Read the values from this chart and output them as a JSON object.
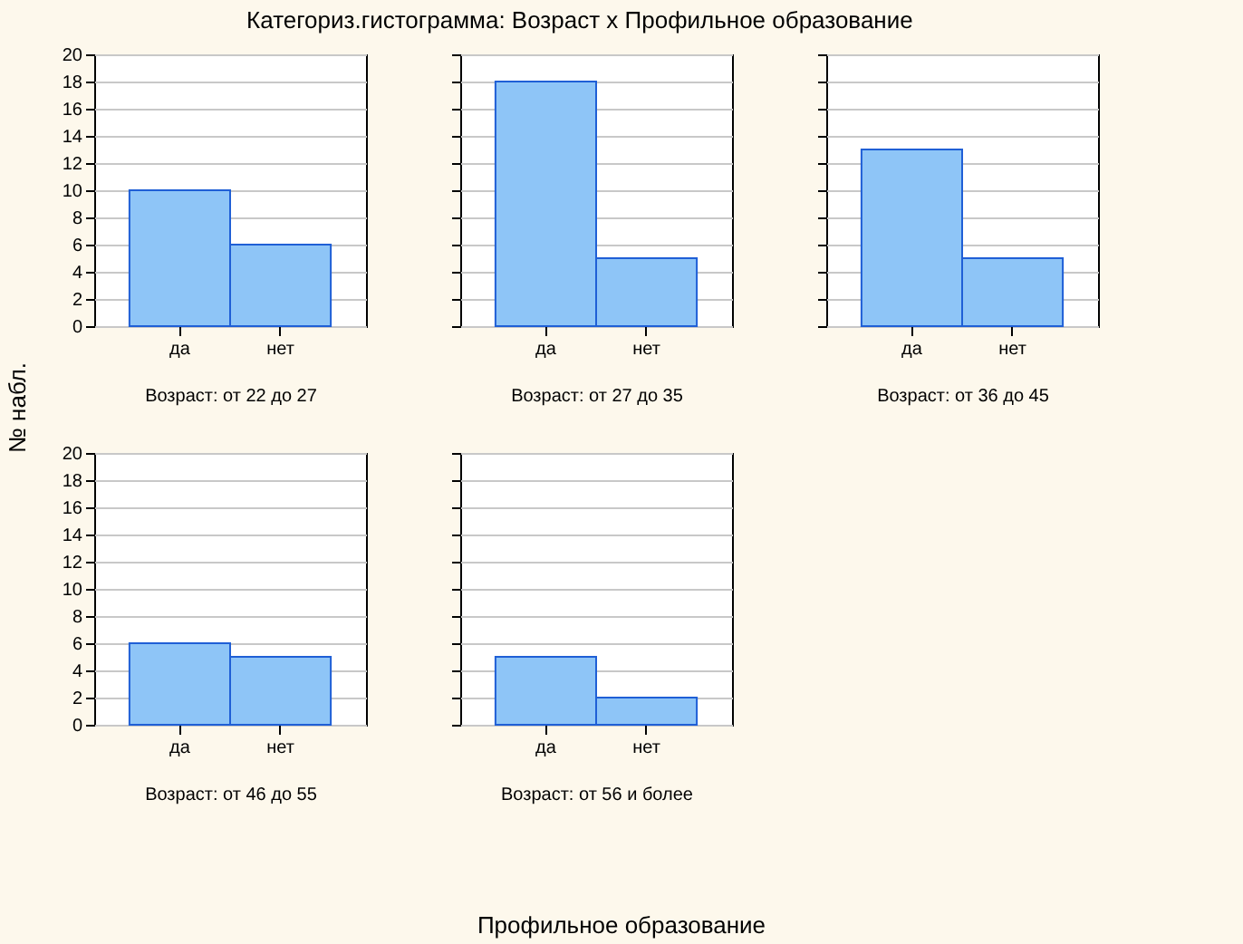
{
  "chart_data": [
    {
      "type": "bar",
      "title": "Категориз.гистограмма: Возраст x Профильное образование",
      "ylabel": "№ набл.",
      "annotations": [
        "Профильное образование"
      ],
      "xlabel": "Возраст: от 22 до 27",
      "categories": [
        "да",
        "нет"
      ],
      "values": [
        10,
        6
      ],
      "color": "#8ec5f7",
      "ylim": [
        0,
        20
      ],
      "yticks": [
        0,
        2,
        4,
        6,
        8,
        10,
        12,
        14,
        16,
        18,
        20
      ],
      "grid": "y"
    },
    {
      "type": "bar",
      "xlabel": "Возраст: от 27 до 35",
      "categories": [
        "да",
        "нет"
      ],
      "values": [
        18,
        5
      ],
      "color": "#8ec5f7",
      "ylim": [
        0,
        20
      ],
      "yticks": [
        0,
        2,
        4,
        6,
        8,
        10,
        12,
        14,
        16,
        18,
        20
      ],
      "grid": "y",
      "tick_labels": "x"
    },
    {
      "type": "bar",
      "xlabel": "Возраст: от 36 до 45",
      "categories": [
        "да",
        "нет"
      ],
      "values": [
        13,
        5
      ],
      "color": "#8ec5f7",
      "ylim": [
        0,
        20
      ],
      "yticks": [
        0,
        2,
        4,
        6,
        8,
        10,
        12,
        14,
        16,
        18,
        20
      ],
      "grid": "y",
      "tick_labels": "x"
    },
    {
      "type": "bar",
      "xlabel": "Возраст: от 46 до 55",
      "categories": [
        "да",
        "нет"
      ],
      "values": [
        6,
        5
      ],
      "color": "#8ec5f7",
      "ylim": [
        0,
        20
      ],
      "yticks": [
        0,
        2,
        4,
        6,
        8,
        10,
        12,
        14,
        16,
        18,
        20
      ],
      "grid": "y"
    },
    {
      "type": "bar",
      "xlabel": "Возраст: от 56 и более",
      "categories": [
        "да",
        "нет"
      ],
      "values": [
        5,
        2
      ],
      "color": "#8ec5f7",
      "ylim": [
        0,
        20
      ],
      "yticks": [
        0,
        2,
        4,
        6,
        8,
        10,
        12,
        14,
        16,
        18,
        20
      ],
      "grid": "y",
      "tick_labels": "x"
    }
  ]
}
